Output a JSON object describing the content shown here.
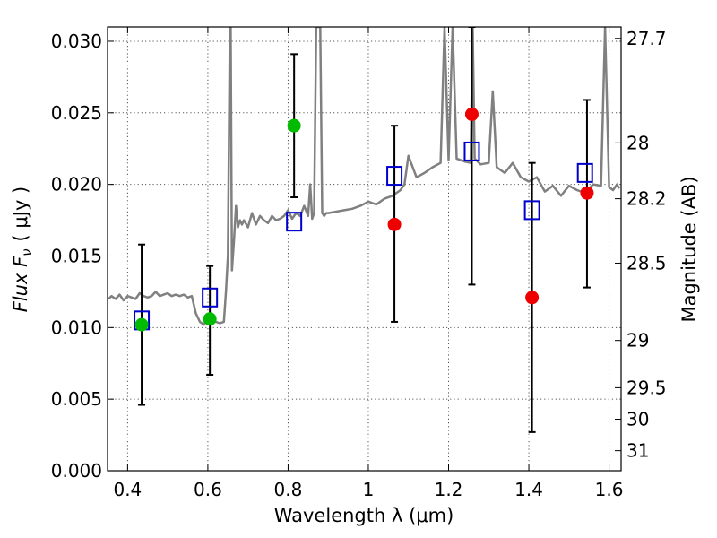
{
  "chart_data": {
    "type": "scatter",
    "xlabel": "Wavelength  λ (μm)",
    "ylabel": "Flux  F",
    "ylabel_sub": "ν",
    "ylabel_unit": "( μJy )",
    "y2label": "Magnitude (AB)",
    "xlim": [
      0.35,
      1.63
    ],
    "ylim": [
      0.0,
      0.031
    ],
    "x_ticks": [
      0.4,
      0.6,
      0.8,
      1.0,
      1.2,
      1.4,
      1.6
    ],
    "x_tick_labels": [
      "0.4",
      "0.6",
      "0.8",
      "1",
      "1.2",
      "1.4",
      "1.6"
    ],
    "y_ticks": [
      0.0,
      0.005,
      0.01,
      0.015,
      0.02,
      0.025,
      0.03
    ],
    "y_tick_labels": [
      "0.000",
      "0.005",
      "0.010",
      "0.015",
      "0.020",
      "0.025",
      "0.030"
    ],
    "y2_ticks": [
      {
        "label": "27.7",
        "flux": 0.0302
      },
      {
        "label": "28",
        "flux": 0.0229
      },
      {
        "label": "28.2",
        "flux": 0.019
      },
      {
        "label": "28.5",
        "flux": 0.0145
      },
      {
        "label": "29",
        "flux": 0.0091
      },
      {
        "label": "29.5",
        "flux": 0.0058
      },
      {
        "label": "30",
        "flux": 0.0036
      },
      {
        "label": "31",
        "flux": 0.0014
      }
    ],
    "grid": true,
    "colors": {
      "spectrum": "#808080",
      "model": "#0000cc",
      "detection": "#00bb00",
      "upper": "#ee0000",
      "errorbar": "#000000"
    },
    "spectrum": {
      "x": [
        0.352,
        0.36,
        0.37,
        0.38,
        0.39,
        0.4,
        0.41,
        0.42,
        0.43,
        0.44,
        0.45,
        0.46,
        0.47,
        0.48,
        0.49,
        0.5,
        0.51,
        0.52,
        0.53,
        0.54,
        0.55,
        0.56,
        0.57,
        0.58,
        0.59,
        0.6,
        0.61,
        0.62,
        0.63,
        0.64,
        0.645,
        0.65,
        0.655,
        0.657,
        0.66,
        0.665,
        0.67,
        0.675,
        0.68,
        0.685,
        0.69,
        0.7,
        0.71,
        0.72,
        0.73,
        0.74,
        0.75,
        0.76,
        0.77,
        0.78,
        0.79,
        0.8,
        0.81,
        0.82,
        0.83,
        0.84,
        0.85,
        0.855,
        0.86,
        0.865,
        0.87,
        0.88,
        0.885,
        0.89,
        0.895,
        0.9,
        0.92,
        0.94,
        0.96,
        0.98,
        1.0,
        1.02,
        1.04,
        1.06,
        1.08,
        1.09,
        1.1,
        1.12,
        1.14,
        1.16,
        1.18,
        1.19,
        1.2,
        1.21,
        1.22,
        1.24,
        1.255,
        1.26,
        1.265,
        1.28,
        1.3,
        1.31,
        1.32,
        1.34,
        1.36,
        1.38,
        1.4,
        1.42,
        1.44,
        1.46,
        1.48,
        1.5,
        1.52,
        1.54,
        1.56,
        1.58,
        1.59,
        1.6,
        1.61,
        1.62,
        1.625
      ],
      "y": [
        0.012,
        0.0122,
        0.012,
        0.0123,
        0.0119,
        0.0122,
        0.0121,
        0.012,
        0.0124,
        0.0122,
        0.0121,
        0.0122,
        0.0125,
        0.0122,
        0.0123,
        0.0124,
        0.0122,
        0.0123,
        0.0122,
        0.0123,
        0.0121,
        0.0122,
        0.011,
        0.0104,
        0.0102,
        0.0108,
        0.0107,
        0.0104,
        0.0103,
        0.0104,
        0.0125,
        0.015,
        0.031,
        0.031,
        0.014,
        0.016,
        0.0185,
        0.017,
        0.0175,
        0.0172,
        0.0175,
        0.017,
        0.018,
        0.0172,
        0.0178,
        0.0175,
        0.0173,
        0.0178,
        0.0175,
        0.0176,
        0.0178,
        0.0182,
        0.0176,
        0.018,
        0.0178,
        0.0185,
        0.0178,
        0.02,
        0.0176,
        0.018,
        0.031,
        0.031,
        0.018,
        0.0178,
        0.018,
        0.018,
        0.0181,
        0.0182,
        0.0183,
        0.0185,
        0.0188,
        0.0186,
        0.019,
        0.0192,
        0.0196,
        0.02,
        0.022,
        0.0205,
        0.0208,
        0.0212,
        0.0215,
        0.031,
        0.0217,
        0.031,
        0.0218,
        0.0216,
        0.0215,
        0.031,
        0.0218,
        0.0214,
        0.0215,
        0.0265,
        0.0212,
        0.0208,
        0.0215,
        0.0205,
        0.0202,
        0.0205,
        0.0195,
        0.0199,
        0.0192,
        0.0199,
        0.0196,
        0.0194,
        0.02,
        0.0199,
        0.031,
        0.0198,
        0.0196,
        0.02,
        0.0197
      ]
    },
    "model_points": [
      {
        "x": 0.435,
        "y": 0.0105
      },
      {
        "x": 0.605,
        "y": 0.0121
      },
      {
        "x": 0.815,
        "y": 0.0174
      },
      {
        "x": 1.065,
        "y": 0.0206
      },
      {
        "x": 1.258,
        "y": 0.0223
      },
      {
        "x": 1.408,
        "y": 0.0182
      },
      {
        "x": 1.54,
        "y": 0.0208
      }
    ],
    "detections": [
      {
        "x": 0.435,
        "y": 0.0102,
        "yerr_low": 0.0046,
        "yerr_high": 0.0158
      },
      {
        "x": 0.605,
        "y": 0.0106,
        "yerr_low": 0.0067,
        "yerr_high": 0.0143
      },
      {
        "x": 0.815,
        "y": 0.0241,
        "yerr_low": 0.0191,
        "yerr_high": 0.0291
      }
    ],
    "upper_limits": [
      {
        "x": 1.065,
        "y": 0.0172,
        "yerr_low": 0.0104,
        "yerr_high": 0.0241
      },
      {
        "x": 1.258,
        "y": 0.0249,
        "yerr_low": 0.013,
        "yerr_high": 0.031
      },
      {
        "x": 1.408,
        "y": 0.0121,
        "yerr_low": 0.0027,
        "yerr_high": 0.0215
      },
      {
        "x": 1.545,
        "y": 0.0194,
        "yerr_low": 0.0128,
        "yerr_high": 0.0259
      }
    ]
  }
}
